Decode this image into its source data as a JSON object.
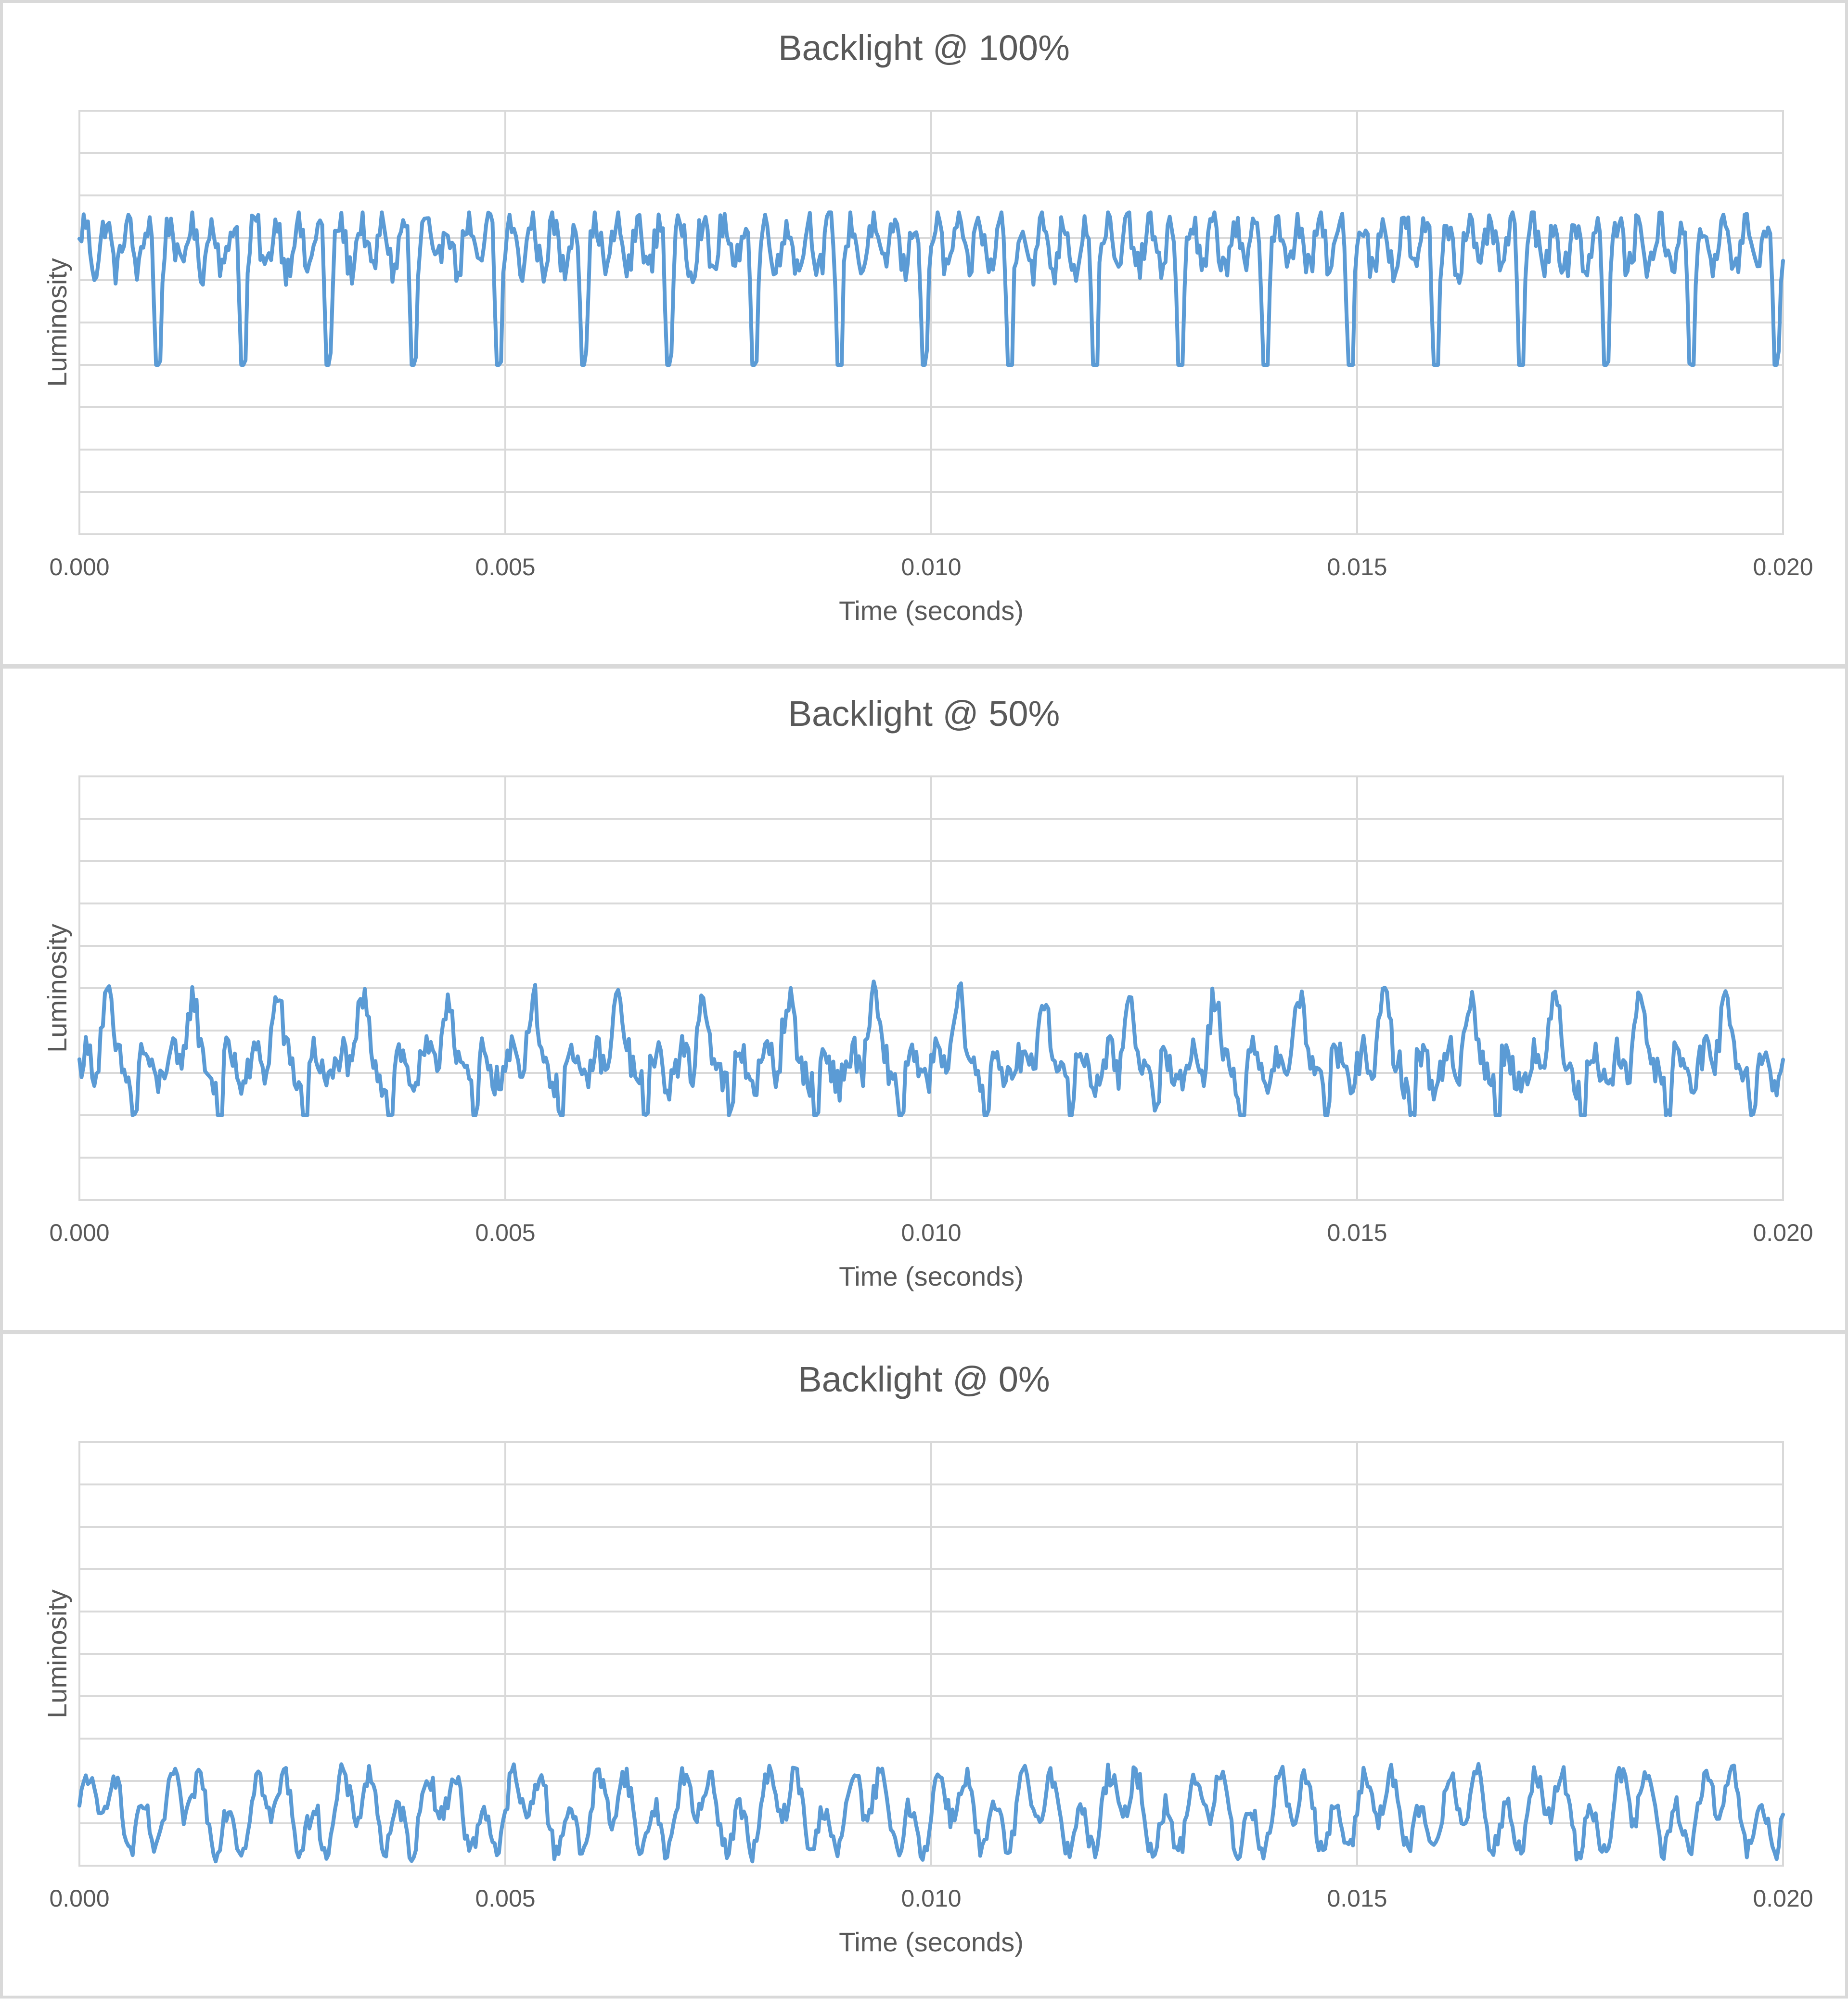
{
  "colors": {
    "series": "#5b9bd5",
    "grid": "#d9d9d9",
    "text": "#595959"
  },
  "chart_data": [
    {
      "type": "line",
      "title": "Backlight @ 100%",
      "xlabel": "Time (seconds)",
      "ylabel": "Luminosity",
      "x_ticks": [
        "0.000",
        "0.005",
        "0.010",
        "0.015",
        "0.020"
      ],
      "xlim": [
        0,
        0.02
      ],
      "ylim": [
        0,
        10
      ],
      "grid": true,
      "legend": "none",
      "period_s": 0.001,
      "series": [
        {
          "y_range": [
            4,
            7.6
          ],
          "mean": 6.6
        }
      ]
    },
    {
      "type": "line",
      "title": "Backlight @ 50%",
      "xlabel": "Time (seconds)",
      "ylabel": "Luminosity",
      "x_ticks": [
        "0.000",
        "0.005",
        "0.010",
        "0.015",
        "0.020"
      ],
      "xlim": [
        0,
        0.02
      ],
      "ylim": [
        0,
        10
      ],
      "grid": true,
      "legend": "none",
      "period_s": 0.001,
      "series": [
        {
          "y_range": [
            2,
            5.2
          ],
          "mean": 3.3
        }
      ]
    },
    {
      "type": "line",
      "title": "Backlight @ 0%",
      "xlabel": "Time (seconds)",
      "ylabel": "Luminosity",
      "x_ticks": [
        "0.000",
        "0.005",
        "0.010",
        "0.015",
        "0.020"
      ],
      "xlim": [
        0,
        0.02
      ],
      "ylim": [
        0,
        10
      ],
      "grid": true,
      "legend": "none",
      "period_s": 0.001,
      "series": [
        {
          "y_range": [
            0.1,
            2.4
          ],
          "mean": 1.2
        }
      ]
    }
  ]
}
